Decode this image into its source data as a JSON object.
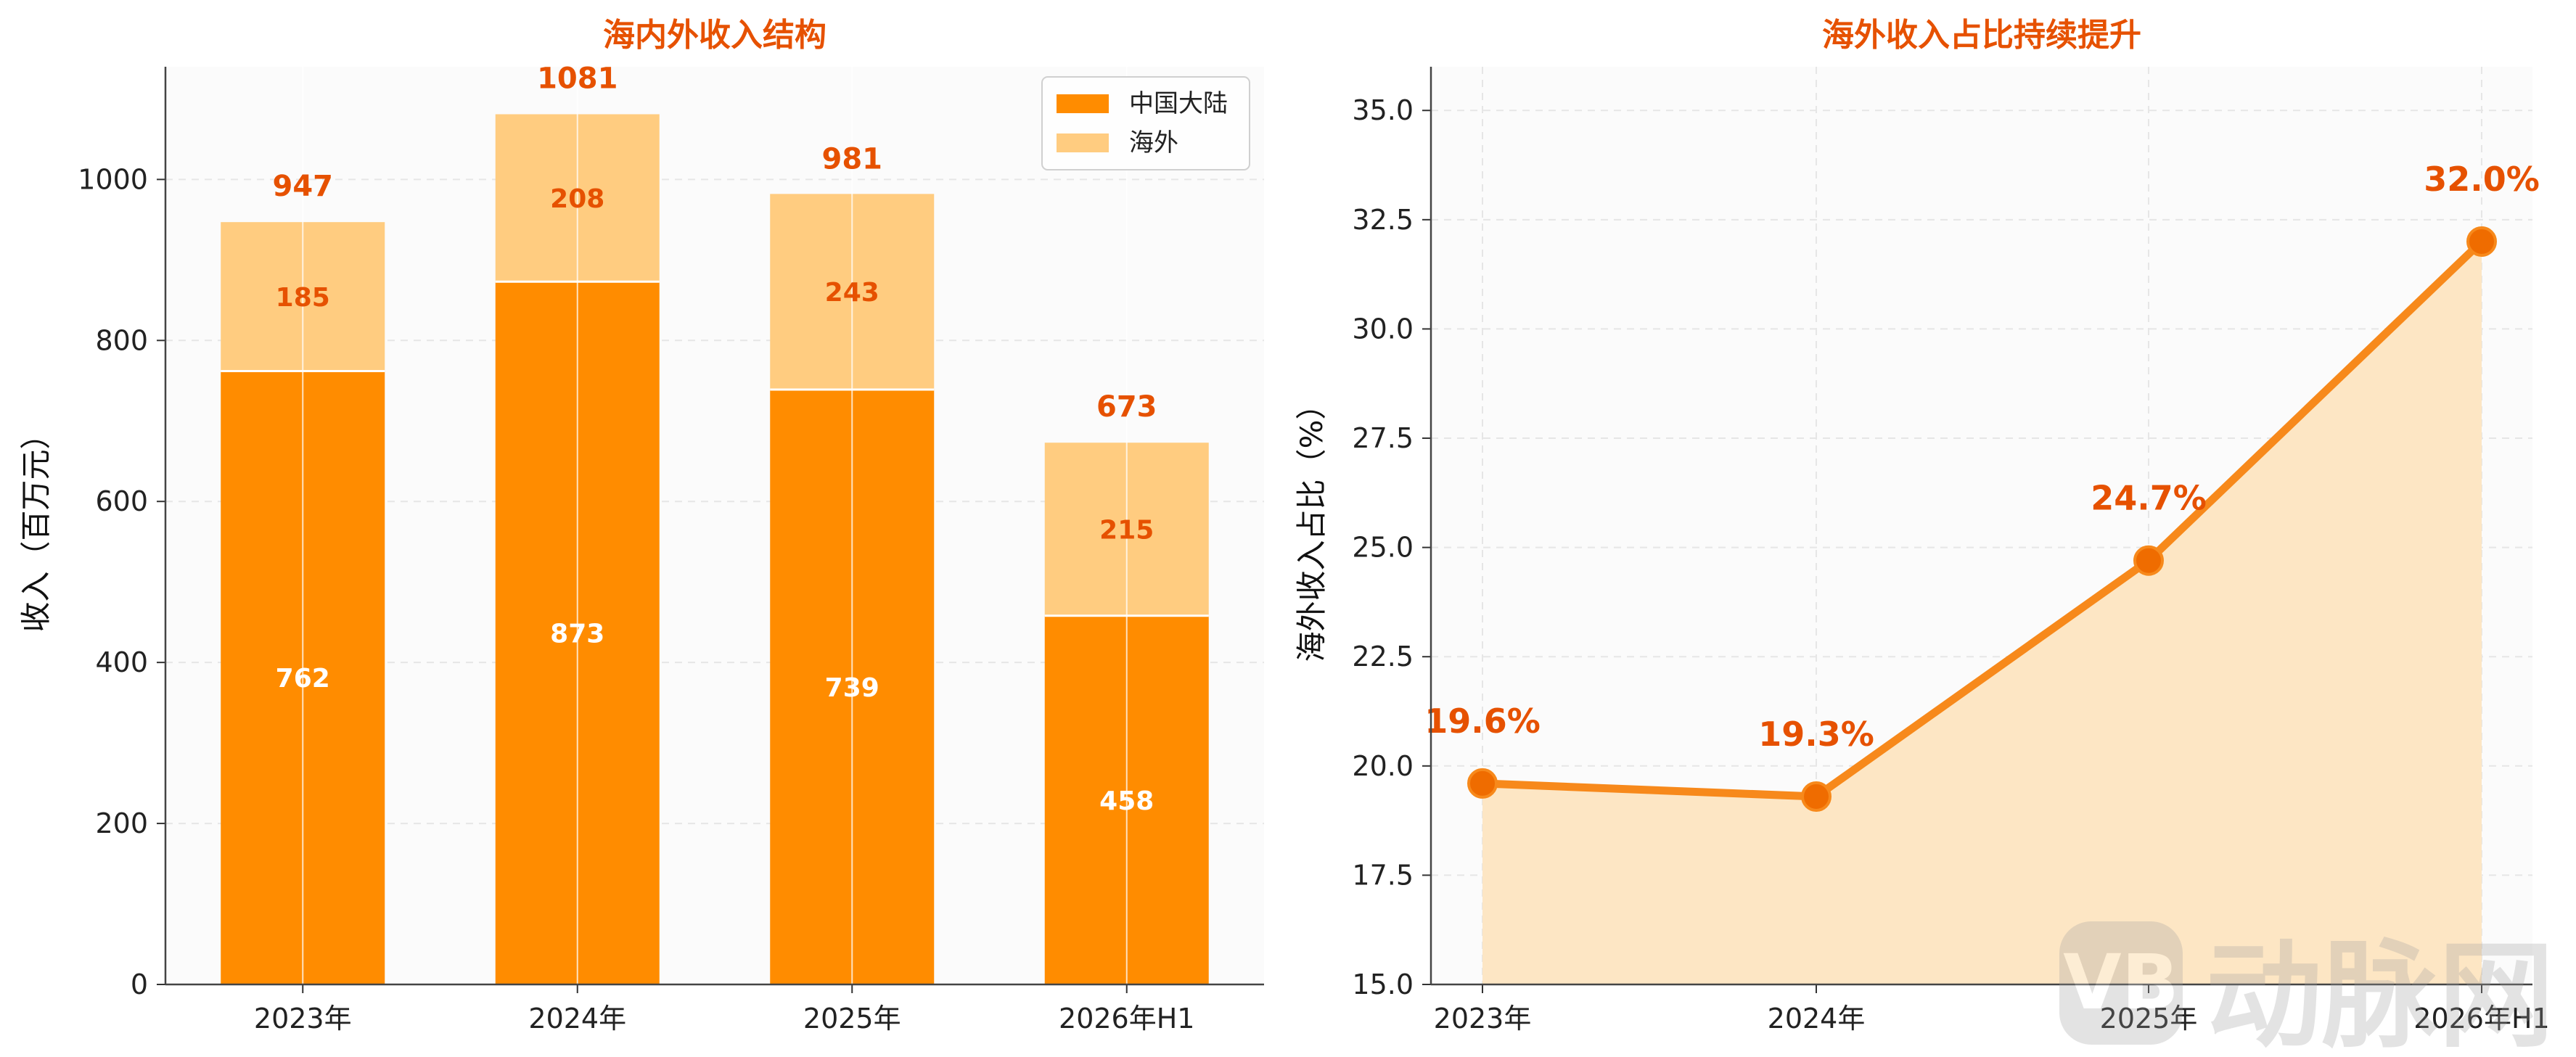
{
  "colors": {
    "mainland": "#ff8c00",
    "overseas": "#ffcc80",
    "label_accent": "#e65100",
    "line": "#f7891b",
    "point": "#ef6c00",
    "area": "#fde6c4",
    "plot_bg": "#fbfbfb",
    "grid": "#e6e6e6"
  },
  "watermark": {
    "text": "动脉网",
    "icon": "vb-logo-icon"
  },
  "chart_data": [
    {
      "type": "bar",
      "stacked": true,
      "title": "海内外收入结构",
      "ylabel": "收入（百万元）",
      "xlabel": "",
      "categories": [
        "2023年",
        "2024年",
        "2025年",
        "2026年H1"
      ],
      "series": [
        {
          "name": "中国大陆",
          "values": [
            762,
            873,
            739,
            458
          ]
        },
        {
          "name": "海外",
          "values": [
            185,
            208,
            243,
            215
          ]
        }
      ],
      "totals": [
        947,
        1081,
        981,
        673
      ],
      "total_labels": [
        "947",
        "1081",
        "981",
        "673"
      ],
      "ylim": [
        0,
        1140
      ],
      "yticks": [
        0,
        200,
        400,
        600,
        800,
        1000
      ],
      "ytick_labels": [
        "0",
        "200",
        "400",
        "600",
        "800",
        "1000"
      ],
      "grid": true,
      "legend_position": "top-right"
    },
    {
      "type": "area",
      "title": "海外收入占比持续提升",
      "ylabel": "海外收入占比（%）",
      "xlabel": "",
      "categories": [
        "2023年",
        "2024年",
        "2025年",
        "2026年H1"
      ],
      "values": [
        19.6,
        19.3,
        24.7,
        32.0
      ],
      "value_labels": [
        "19.6%",
        "19.3%",
        "24.7%",
        "32.0%"
      ],
      "ylim": [
        15.0,
        36.0
      ],
      "yticks": [
        15.0,
        17.5,
        20.0,
        22.5,
        25.0,
        27.5,
        30.0,
        32.5,
        35.0
      ],
      "ytick_labels": [
        "15.0",
        "17.5",
        "20.0",
        "22.5",
        "25.0",
        "27.5",
        "30.0",
        "32.5",
        "35.0"
      ],
      "grid": true
    }
  ]
}
